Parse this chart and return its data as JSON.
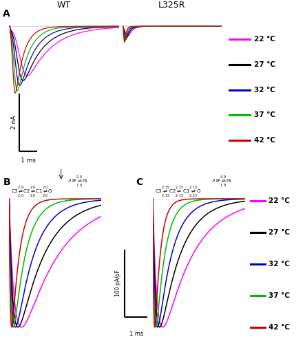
{
  "colors": [
    "#ff00ff",
    "#000000",
    "#0000cc",
    "#00bb00",
    "#cc0000"
  ],
  "legend_labels": [
    "22 °C",
    "27 °C",
    "32 °C",
    "37 °C",
    "42 °C"
  ],
  "wt_title": "WT",
  "l325r_title": "L325R",
  "panel_A_label": "A",
  "panel_B_label": "B",
  "panel_C_label": "C",
  "scale_bar_A_y": "2 nA",
  "scale_bar_A_x": "1 ms",
  "scale_bar_BC_y": "100 pA/pF",
  "scale_bar_BC_x": "1 ms",
  "background": "#ffffff",
  "wt_speed_factors": [
    2.2,
    1.7,
    1.3,
    1.0,
    0.75
  ],
  "wt_amplitudes": [
    1.0,
    1.1,
    1.2,
    1.3,
    1.35
  ],
  "l325r_speed_factors": [
    1.1,
    0.85,
    0.65,
    0.5,
    0.4
  ],
  "l325r_amplitudes": [
    0.32,
    0.38,
    0.44,
    0.48,
    0.52
  ],
  "model_B_speed_factors": [
    3.8,
    2.7,
    1.9,
    1.25,
    0.78
  ],
  "model_C_speed_factors": [
    3.5,
    2.4,
    1.65,
    1.05,
    0.65
  ]
}
